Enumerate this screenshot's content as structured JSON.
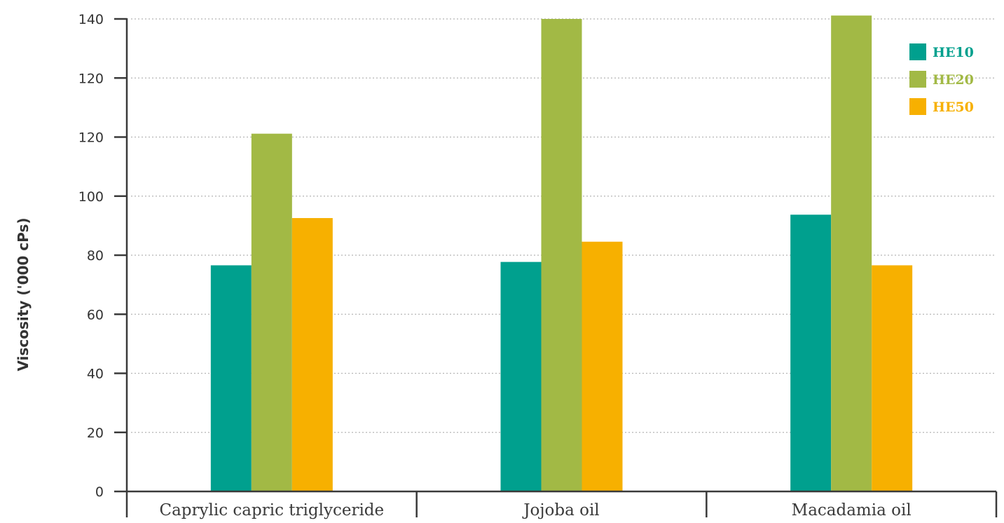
{
  "chart_data": {
    "type": "bar",
    "title": "",
    "xlabel": "",
    "ylabel": "Viscosity ('000 cPs)",
    "ylim": [
      0,
      140
    ],
    "ytick_labels": [
      "0",
      "20",
      "40",
      "60",
      "80",
      "100",
      "120",
      "120",
      "140"
    ],
    "grid": true,
    "legend_position": "top-right",
    "categories": [
      "Caprylic capric triglyceride",
      "Jojoba oil",
      "Macadamia oil"
    ],
    "series": [
      {
        "name": "HE10",
        "color": "#00a08e",
        "values": [
          67,
          68,
          82
        ]
      },
      {
        "name": "HE20",
        "color": "#a2b945",
        "values": [
          106,
          140,
          141
        ]
      },
      {
        "name": "HE50",
        "color": "#f7b000",
        "values": [
          81,
          74,
          67
        ]
      }
    ]
  }
}
